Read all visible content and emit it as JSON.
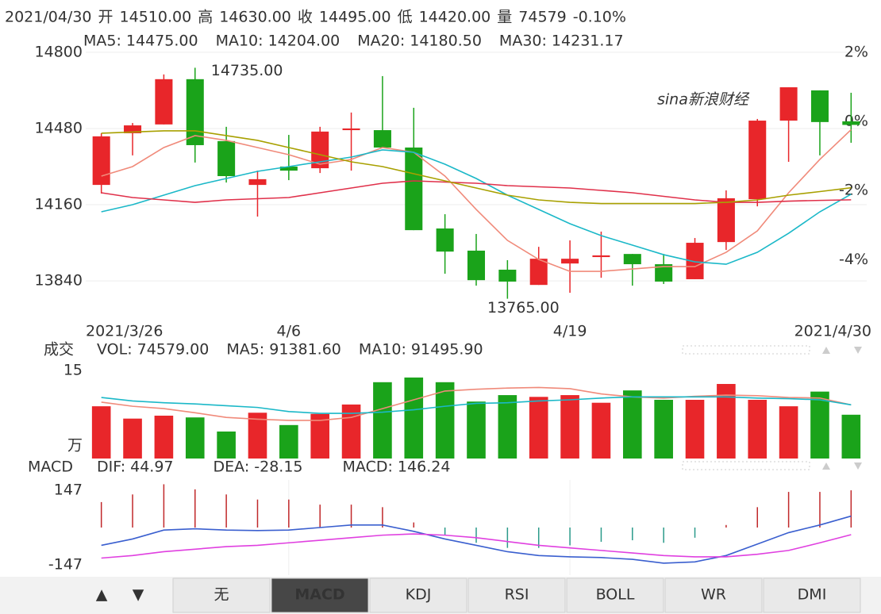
{
  "header": {
    "items": [
      {
        "text": "2021/04/30",
        "color": "#222"
      },
      {
        "text": "开",
        "color": "#222"
      },
      {
        "text": "14510.00",
        "color": "#222"
      },
      {
        "text": "高",
        "color": "#222"
      },
      {
        "text": "14630.00",
        "color": "#e02020"
      },
      {
        "text": "收",
        "color": "#222"
      },
      {
        "text": "14495.00",
        "color": "#149a14"
      },
      {
        "text": "低",
        "color": "#222"
      },
      {
        "text": "14420.00",
        "color": "#149a14"
      },
      {
        "text": "量",
        "color": "#222"
      },
      {
        "text": "74579",
        "color": "#222"
      },
      {
        "text": "-0.10%",
        "color": "#149a14"
      }
    ]
  },
  "watermark": "sina新浪财经",
  "chart_data": [
    {
      "type": "candlestick",
      "categories": [
        "2021/3/26",
        null,
        null,
        null,
        null,
        null,
        "4/6",
        null,
        null,
        null,
        null,
        null,
        null,
        null,
        null,
        "4/19",
        null,
        null,
        null,
        null,
        null,
        null,
        null,
        null,
        "2021/4/30"
      ],
      "open": [
        14243,
        14460,
        14497,
        14687,
        14427,
        14243,
        14320,
        14313,
        14473,
        14473,
        14400,
        14060,
        13967,
        13887,
        13823,
        13913,
        13940,
        13953,
        13910,
        13847,
        14003,
        14183,
        14513,
        14640,
        14510
      ],
      "high": [
        14460,
        14503,
        14707,
        14735,
        14487,
        14303,
        14453,
        14487,
        14547,
        14700,
        14567,
        14120,
        14037,
        13927,
        13983,
        14010,
        14047,
        13953,
        13953,
        14020,
        14220,
        14520,
        14653,
        14640,
        14630
      ],
      "low": [
        14207,
        14367,
        14497,
        14337,
        14253,
        14110,
        14263,
        14293,
        14303,
        14400,
        14053,
        13870,
        13820,
        13765,
        13823,
        13790,
        13853,
        13820,
        13827,
        13847,
        13970,
        14153,
        14340,
        14367,
        14420
      ],
      "close": [
        14447,
        14493,
        14687,
        14410,
        14280,
        14267,
        14303,
        14467,
        14480,
        14400,
        14053,
        13963,
        13843,
        13837,
        13933,
        13933,
        13947,
        13910,
        13837,
        14000,
        14187,
        14513,
        14653,
        14507,
        14495
      ],
      "colors": {
        "up": "#e8262a",
        "down": "#1aa31a"
      },
      "ylim": [
        13687,
        14813
      ],
      "yticks": [
        14800,
        14480,
        14160,
        13840
      ],
      "y2lim": [
        -5.67,
        2.09
      ],
      "y2ticks": [
        {
          "value": 2,
          "label": "2%"
        },
        {
          "value": 0,
          "label": "0%"
        },
        {
          "value": -2,
          "label": "-2%"
        },
        {
          "value": -4,
          "label": "-4%"
        }
      ],
      "grid": true,
      "annotations": [
        "14735.00",
        "13765.00"
      ],
      "series": [
        {
          "name": "MA5: 14475.00",
          "color": "#f08a7a",
          "values": [
            14280,
            14320,
            14400,
            14450,
            14430,
            14400,
            14370,
            14330,
            14350,
            14400,
            14380,
            14280,
            14140,
            14010,
            13930,
            13880,
            13880,
            13890,
            13900,
            13900,
            13960,
            14050,
            14210,
            14350,
            14475
          ]
        },
        {
          "name": "MA10: 14204.00",
          "color": "#1bb8c8",
          "values": [
            14130,
            14160,
            14200,
            14240,
            14270,
            14300,
            14320,
            14340,
            14360,
            14390,
            14380,
            14330,
            14270,
            14200,
            14140,
            14080,
            14030,
            13990,
            13950,
            13920,
            13910,
            13960,
            14040,
            14130,
            14204
          ]
        },
        {
          "name": "MA20: 14180.50",
          "color": "#e0304a",
          "values": [
            14210,
            14190,
            14180,
            14170,
            14180,
            14185,
            14190,
            14210,
            14230,
            14250,
            14260,
            14255,
            14250,
            14240,
            14235,
            14230,
            14220,
            14210,
            14195,
            14180,
            14170,
            14170,
            14175,
            14178,
            14180.5
          ]
        },
        {
          "name": "MA30: 14231.17",
          "color": "#a8a000",
          "values": [
            14460,
            14465,
            14470,
            14470,
            14450,
            14430,
            14400,
            14370,
            14340,
            14320,
            14290,
            14260,
            14230,
            14200,
            14180,
            14170,
            14165,
            14165,
            14165,
            14165,
            14170,
            14180,
            14200,
            14215,
            14231.17
          ]
        }
      ]
    },
    {
      "type": "volume",
      "title": "成交",
      "unit": "万",
      "legend": [
        {
          "text": "VOL: 74579.00",
          "color": "#666"
        }
      ],
      "values": [
        8.9,
        6.8,
        7.3,
        7.0,
        4.6,
        7.8,
        5.7,
        7.6,
        9.2,
        13.0,
        13.8,
        13.0,
        9.7,
        10.8,
        10.5,
        10.8,
        9.5,
        11.6,
        10.0,
        10.0,
        12.7,
        10.0,
        8.9,
        11.4,
        7.46
      ],
      "ylim": [
        0,
        15
      ],
      "yticks": [
        15
      ],
      "series": [
        {
          "name": "MA5: 91381.60",
          "color": "#f08a7a",
          "values": [
            9.6,
            8.9,
            8.5,
            7.8,
            7.0,
            6.7,
            6.5,
            6.5,
            7.0,
            8.5,
            10,
            11.5,
            11.8,
            12,
            12.1,
            11.9,
            11,
            10.5,
            10.3,
            10.6,
            10.8,
            10.7,
            10.4,
            10.3,
            9.14
          ]
        },
        {
          "name": "MA10: 91495.90",
          "color": "#1bb8c8",
          "values": [
            10.4,
            9.8,
            9.5,
            9.3,
            9.0,
            8.7,
            8.0,
            7.7,
            7.7,
            7.9,
            8.3,
            8.9,
            9.4,
            9.5,
            9.8,
            10,
            10.3,
            10.5,
            10.5,
            10.5,
            10.5,
            10.3,
            10.2,
            10.0,
            9.15
          ]
        }
      ]
    },
    {
      "type": "macd",
      "title": "MACD",
      "ylim": [
        -187,
        187
      ],
      "yticks": [
        147,
        -147
      ],
      "histogram": {
        "name": "MACD: 146.24",
        "colors": {
          "up": "#c0282a",
          "down": "#2a9a8a"
        },
        "values": [
          100,
          130,
          170,
          150,
          130,
          110,
          110,
          90,
          90,
          80,
          20,
          -30,
          -60,
          -80,
          -80,
          -70,
          -56,
          -50,
          -60,
          -40,
          10,
          80,
          140,
          140,
          146.24
        ]
      },
      "series": [
        {
          "name": "DIF: 44.97",
          "color": "#3a5fcf",
          "values": [
            -70,
            -45,
            -10,
            -5,
            -10,
            -12,
            -10,
            0,
            10,
            10,
            -15,
            -45,
            -70,
            -95,
            -110,
            -115,
            -118,
            -125,
            -140,
            -135,
            -110,
            -65,
            -20,
            10,
            44.97
          ]
        },
        {
          "name": "DEA: -28.15",
          "color": "#e040e0",
          "values": [
            -120,
            -110,
            -95,
            -85,
            -75,
            -70,
            -60,
            -50,
            -40,
            -30,
            -25,
            -30,
            -40,
            -55,
            -70,
            -80,
            -90,
            -100,
            -110,
            -115,
            -115,
            -105,
            -90,
            -60,
            -28.15
          ]
        }
      ]
    }
  ],
  "toolbar": {
    "buttons": [
      "▲",
      "▼"
    ],
    "tabs": [
      "无",
      "MACD",
      "KDJ",
      "RSI",
      "BOLL",
      "WR",
      "DMI"
    ],
    "active_tab": 1
  }
}
